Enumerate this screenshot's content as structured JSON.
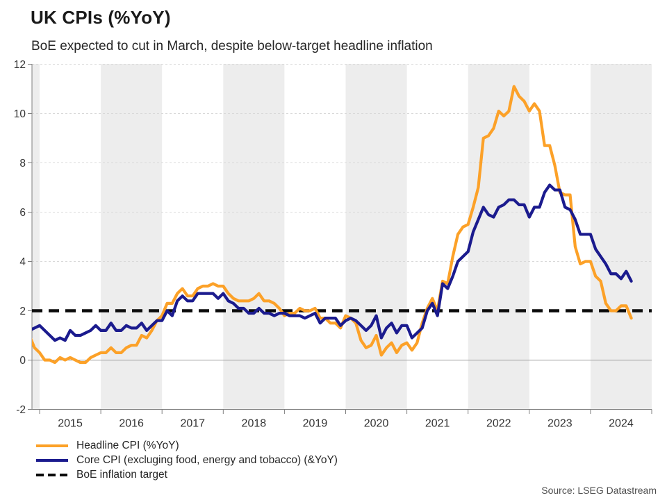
{
  "header": {
    "title": "UK CPIs (%YoY)",
    "subtitle": "BoE expected to cut in March, despite below-target headline inflation"
  },
  "source": "Source: LSEG Datastream",
  "colors": {
    "headline": "#FCA128",
    "core": "#1B1B8E",
    "target": "#0B0B0B",
    "band": "#EDEDED",
    "grid": "#D9D9D9",
    "zero_line": "#999999",
    "axis": "#7F7F7F",
    "tick_text": "#333333"
  },
  "legend": {
    "items": [
      {
        "label": "Headline CPI (%YoY)",
        "style": "solid",
        "color_key": "headline"
      },
      {
        "label": "Core CPI (excluging food, energy and tobacco) (&YoY)",
        "style": "solid",
        "color_key": "core"
      },
      {
        "label": "BoE inflation target",
        "style": "dashed",
        "color_key": "target"
      }
    ]
  },
  "chart_data": {
    "type": "line",
    "title": "UK CPIs (%YoY)",
    "subtitle": "BoE expected to cut in March, despite below-target headline inflation",
    "xlabel": "",
    "ylabel": "",
    "x_start_month": "2014-11",
    "x_end_month": "2024-09",
    "frequency": "monthly",
    "ylim": [
      -2,
      12
    ],
    "yticks": [
      12,
      10,
      8,
      6,
      4,
      2,
      0,
      -2
    ],
    "xticks_years": [
      2015,
      2016,
      2017,
      2018,
      2019,
      2020,
      2021,
      2022,
      2023,
      2024
    ],
    "shaded_years": [
      2014,
      2016,
      2018,
      2020,
      2022,
      2024
    ],
    "grid": "dotted-horizontal",
    "legend_position": "bottom-left",
    "target_line": {
      "label": "BoE inflation target",
      "value": 2
    },
    "series": [
      {
        "name": "Headline CPI (%YoY)",
        "color_key": "headline",
        "values": [
          1.0,
          0.5,
          0.3,
          0.0,
          0.0,
          -0.1,
          0.1,
          0.0,
          0.1,
          0.0,
          -0.1,
          -0.1,
          0.1,
          0.2,
          0.3,
          0.3,
          0.5,
          0.3,
          0.3,
          0.5,
          0.6,
          0.6,
          1.0,
          0.9,
          1.2,
          1.6,
          1.8,
          2.3,
          2.3,
          2.7,
          2.9,
          2.6,
          2.6,
          2.9,
          3.0,
          3.0,
          3.1,
          3.0,
          3.0,
          2.7,
          2.5,
          2.4,
          2.4,
          2.4,
          2.5,
          2.7,
          2.4,
          2.4,
          2.3,
          2.1,
          1.8,
          1.9,
          1.9,
          2.1,
          2.0,
          2.0,
          2.1,
          1.7,
          1.7,
          1.5,
          1.5,
          1.3,
          1.8,
          1.7,
          1.5,
          0.8,
          0.5,
          0.6,
          1.0,
          0.2,
          0.5,
          0.7,
          0.3,
          0.6,
          0.7,
          0.4,
          0.7,
          1.5,
          2.1,
          2.5,
          2.0,
          3.2,
          3.1,
          4.2,
          5.1,
          5.4,
          5.5,
          6.2,
          7.0,
          9.0,
          9.1,
          9.4,
          10.1,
          9.9,
          10.1,
          11.1,
          10.7,
          10.5,
          10.1,
          10.4,
          10.1,
          8.7,
          8.7,
          7.9,
          6.8,
          6.7,
          6.7,
          4.6,
          3.9,
          4.0,
          4.0,
          3.4,
          3.2,
          2.3,
          2.0,
          2.0,
          2.2,
          2.2,
          1.7
        ]
      },
      {
        "name": "Core CPI (excluging food, energy and tobacco) (&YoY)",
        "color_key": "core",
        "values": [
          1.2,
          1.3,
          1.4,
          1.2,
          1.0,
          0.8,
          0.9,
          0.8,
          1.2,
          1.0,
          1.0,
          1.1,
          1.2,
          1.4,
          1.2,
          1.2,
          1.5,
          1.2,
          1.2,
          1.4,
          1.3,
          1.3,
          1.5,
          1.2,
          1.4,
          1.6,
          1.6,
          2.0,
          1.8,
          2.4,
          2.6,
          2.4,
          2.4,
          2.7,
          2.7,
          2.7,
          2.7,
          2.5,
          2.7,
          2.4,
          2.3,
          2.1,
          2.1,
          1.9,
          1.9,
          2.1,
          1.9,
          1.9,
          1.8,
          1.9,
          1.9,
          1.8,
          1.8,
          1.8,
          1.7,
          1.8,
          1.9,
          1.5,
          1.7,
          1.7,
          1.7,
          1.4,
          1.6,
          1.7,
          1.6,
          1.4,
          1.2,
          1.4,
          1.8,
          0.9,
          1.3,
          1.5,
          1.1,
          1.4,
          1.4,
          0.9,
          1.1,
          1.3,
          2.0,
          2.3,
          1.8,
          3.1,
          2.9,
          3.4,
          4.0,
          4.2,
          4.4,
          5.2,
          5.7,
          6.2,
          5.9,
          5.8,
          6.2,
          6.3,
          6.5,
          6.5,
          6.3,
          6.3,
          5.8,
          6.2,
          6.2,
          6.8,
          7.1,
          6.9,
          6.9,
          6.2,
          6.1,
          5.7,
          5.1,
          5.1,
          5.1,
          4.5,
          4.2,
          3.9,
          3.5,
          3.5,
          3.3,
          3.6,
          3.2
        ]
      }
    ]
  }
}
